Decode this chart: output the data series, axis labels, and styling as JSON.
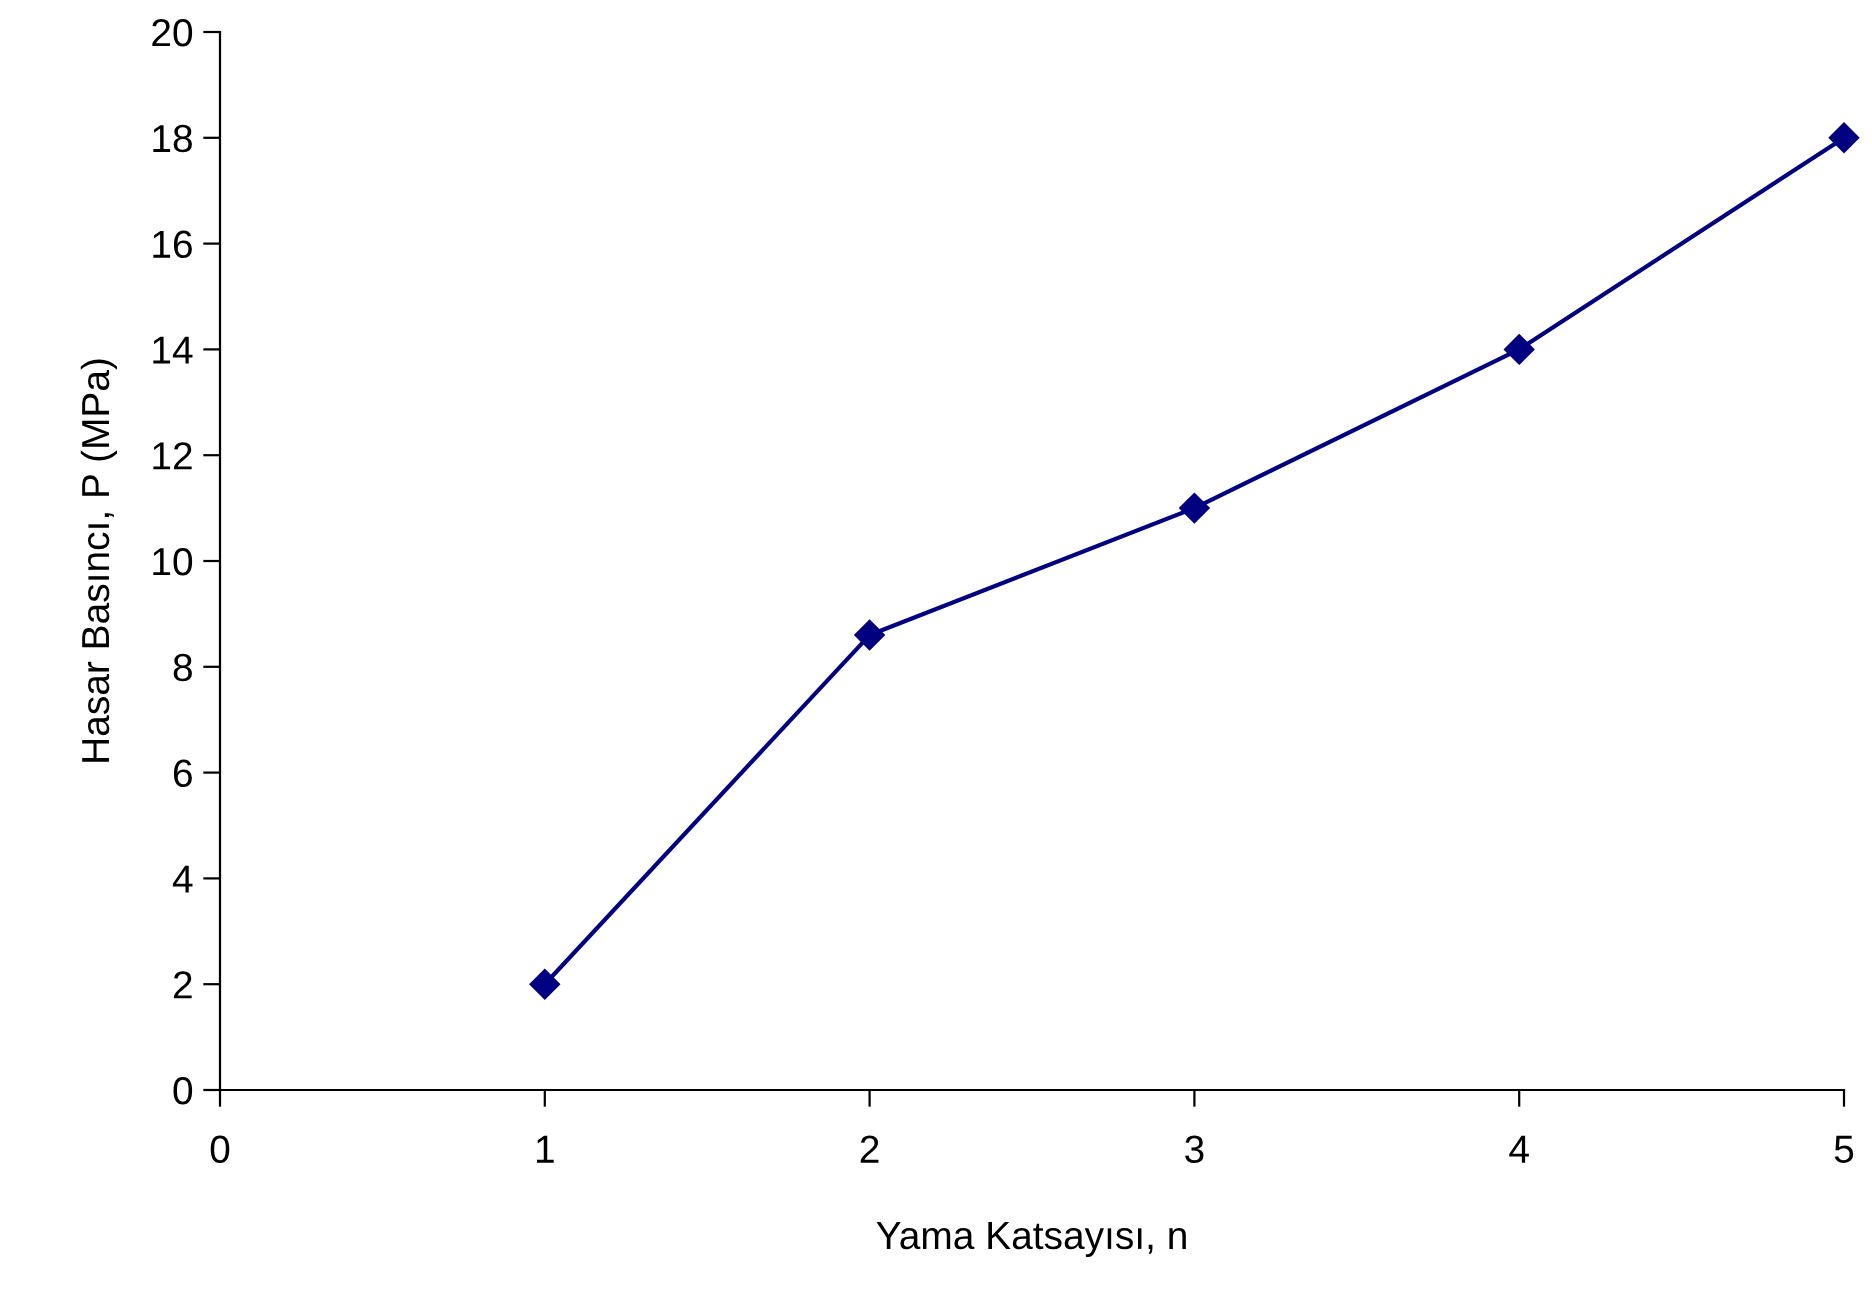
{
  "chart_data": {
    "type": "line",
    "xlabel": "Yama Katsayısı, n",
    "ylabel": "Hasar Basıncı, P (MPa)",
    "x": [
      1,
      2,
      3,
      4,
      5
    ],
    "series": [
      {
        "color": "#000080",
        "values": [
          2,
          8.6,
          11,
          14,
          18
        ]
      }
    ],
    "xlim": [
      0,
      5
    ],
    "xticks": [
      0,
      1,
      2,
      3,
      4,
      5
    ],
    "ylim": [
      0,
      20
    ],
    "yticks": [
      0,
      2,
      4,
      6,
      8,
      10,
      12,
      14,
      16,
      18,
      20
    ],
    "grid": false,
    "marker": "diamond",
    "line_style": "solid"
  }
}
